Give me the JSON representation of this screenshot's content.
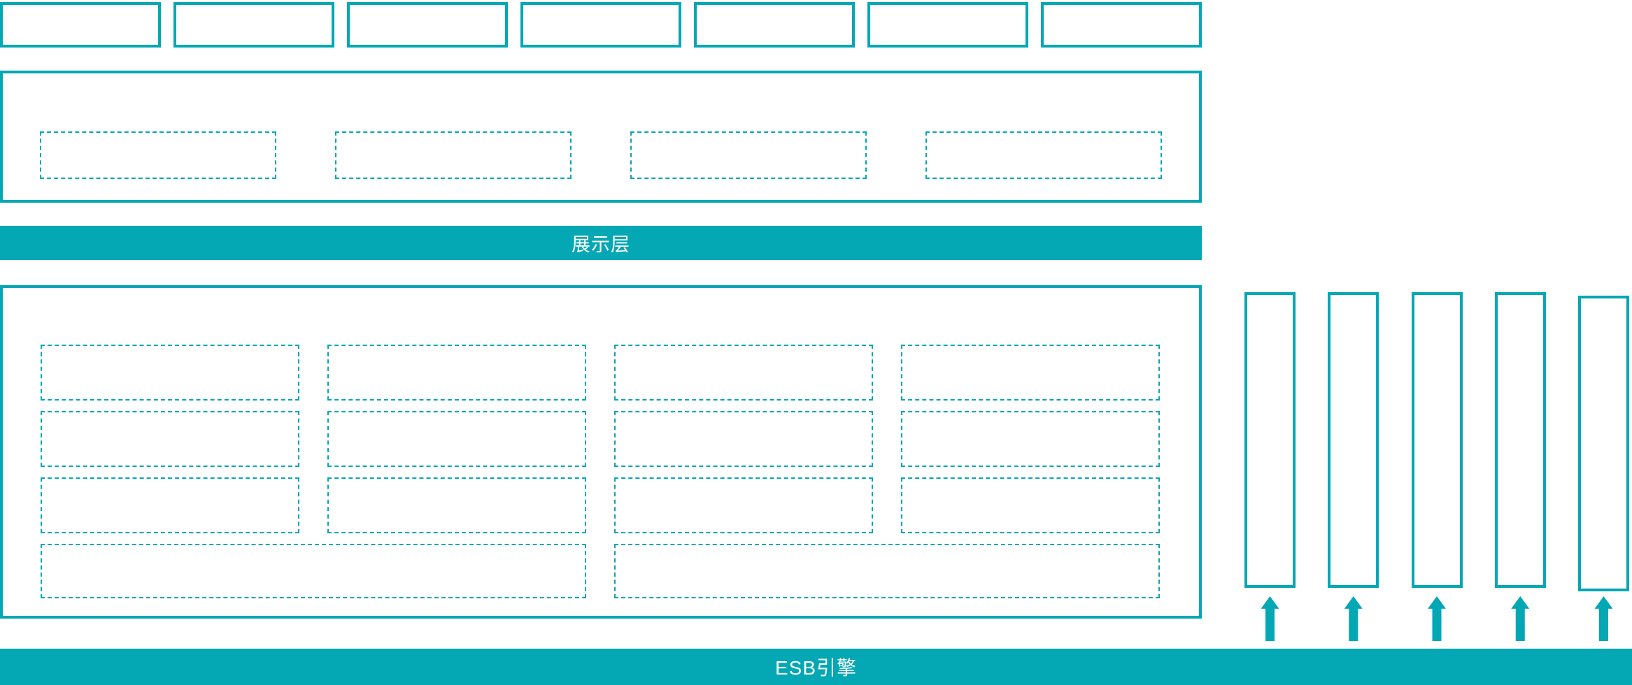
{
  "accent_color": "#04A7B4",
  "top_row": {
    "box_count": 7
  },
  "service_band": {
    "box_count": 4
  },
  "display_layer_bar": {
    "label": "展示层"
  },
  "main_grid": {
    "rows": 3,
    "cols": 4,
    "wide_box_count": 2
  },
  "right_columns": {
    "count": 5
  },
  "esb_bar": {
    "label": "ESB引擎"
  }
}
